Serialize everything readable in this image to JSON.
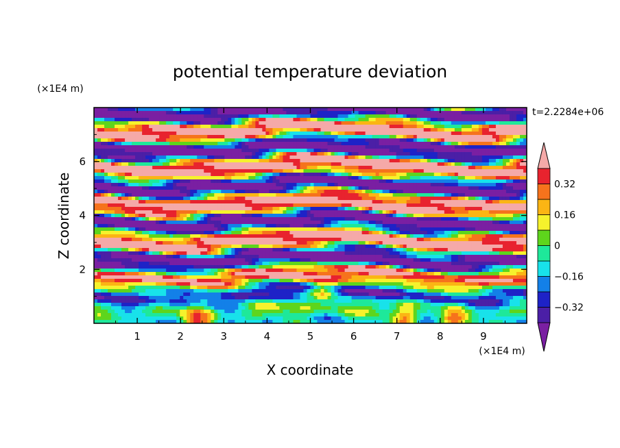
{
  "chart_data": {
    "type": "heatmap",
    "title": "potential temperature deviation",
    "xlabel": "X coordinate",
    "ylabel": "Z coordinate",
    "x_unit": "(×1E4 m)",
    "y_unit": "(×1E4 m)",
    "time_label": "t=2.2284e+06",
    "xlim": [
      0,
      10
    ],
    "ylim": [
      0,
      8
    ],
    "x_ticks": [
      1,
      2,
      3,
      4,
      5,
      6,
      7,
      8,
      9
    ],
    "y_ticks": [
      2,
      4,
      6
    ],
    "colorbar": {
      "levels": [
        -0.4,
        -0.32,
        -0.24,
        -0.16,
        -0.08,
        0,
        0.08,
        0.16,
        0.24,
        0.32,
        0.4
      ],
      "tick_labels": [
        "0.32",
        "0.16",
        "0",
        "-0.16",
        "-0.32"
      ],
      "tick_values": [
        0.32,
        0.16,
        0,
        -0.16,
        -0.32
      ],
      "colors": [
        "#7a1fa2",
        "#4b1fa6",
        "#1e22c7",
        "#1380e8",
        "#18e2ea",
        "#1ee89a",
        "#5ed51c",
        "#f6f22c",
        "#fbb514",
        "#f6731c",
        "#e8232e",
        "#f5a9a8"
      ],
      "extend": "both"
    }
  }
}
